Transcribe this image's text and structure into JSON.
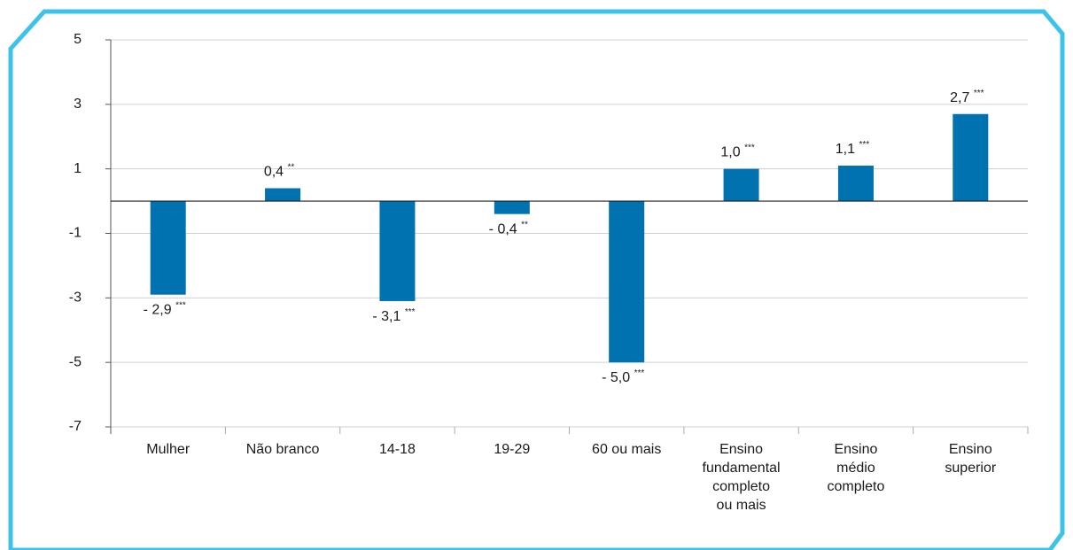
{
  "chart_data": {
    "type": "bar",
    "categories": [
      "Mulher",
      "Não branco",
      "14-18",
      "19-29",
      "60 ou mais",
      "Ensino\nfundamental\ncompleto\nou mais",
      "Ensino\nmédio\ncompleto",
      "Ensino\nsuperior"
    ],
    "values": [
      -2.9,
      0.4,
      -3.1,
      -0.4,
      -5.0,
      1.0,
      1.1,
      2.7
    ],
    "value_labels": [
      "- 2,9",
      "0,4",
      "- 3,1",
      "- 0,4",
      "- 5,0",
      "1,0",
      "1,1",
      "2,7"
    ],
    "value_annotations": [
      "***",
      "**",
      "***",
      "**",
      "***",
      "***",
      "***",
      "***"
    ],
    "color": "#0072b0",
    "ylim": [
      -7,
      5
    ],
    "yticks": [
      5,
      3,
      1,
      -1,
      -3,
      -5,
      -7
    ],
    "grid": true
  }
}
